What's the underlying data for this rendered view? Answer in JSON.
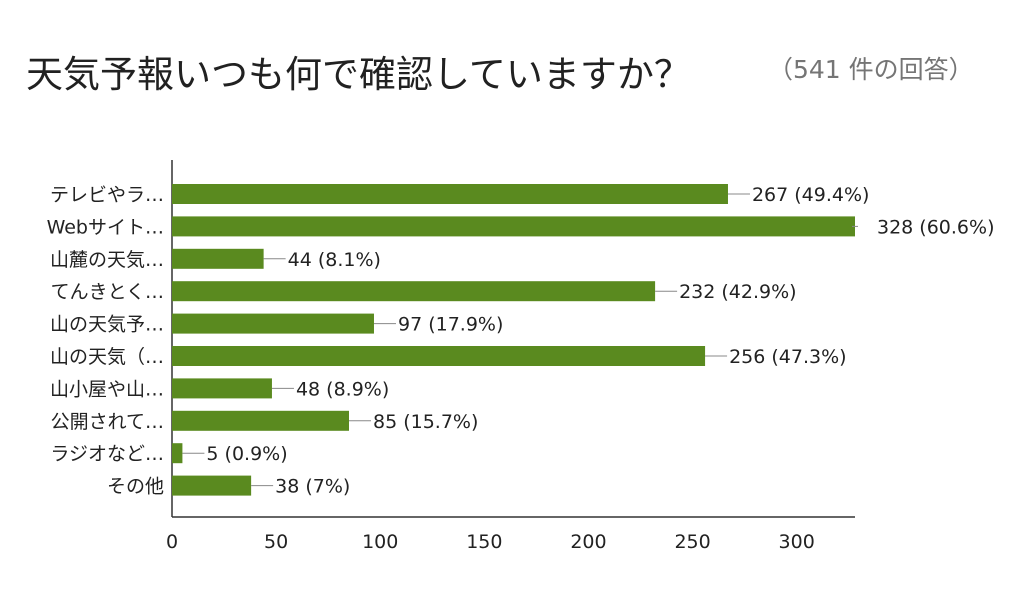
{
  "title": "天気予報いつも何で確認していますか？",
  "subtitle": "（541 件の回答）",
  "chart_data": {
    "type": "bar",
    "orientation": "horizontal",
    "categories": [
      "テレビやラ…",
      "Webサイト…",
      "山麓の天気…",
      "てんきとく…",
      "山の天気予…",
      "山の天気（…",
      "山小屋や山…",
      "公開されて…",
      "ラジオなど…",
      "その他"
    ],
    "values": [
      267,
      328,
      44,
      232,
      97,
      256,
      48,
      85,
      5,
      38
    ],
    "data_labels": [
      "267 (49.4%)",
      "328 (60.6%)",
      "44 (8.1%)",
      "232 (42.9%)",
      "97 (17.9%)",
      "256 (47.3%)",
      "48 (8.9%)",
      "85 (15.7%)",
      "5 (0.9%)",
      "38 (7%)"
    ],
    "x_ticks": [
      "0",
      "50",
      "100",
      "150",
      "200",
      "250",
      "300"
    ],
    "xlim": [
      0,
      328
    ],
    "bar_color": "#5a8a1f",
    "grid": false
  }
}
